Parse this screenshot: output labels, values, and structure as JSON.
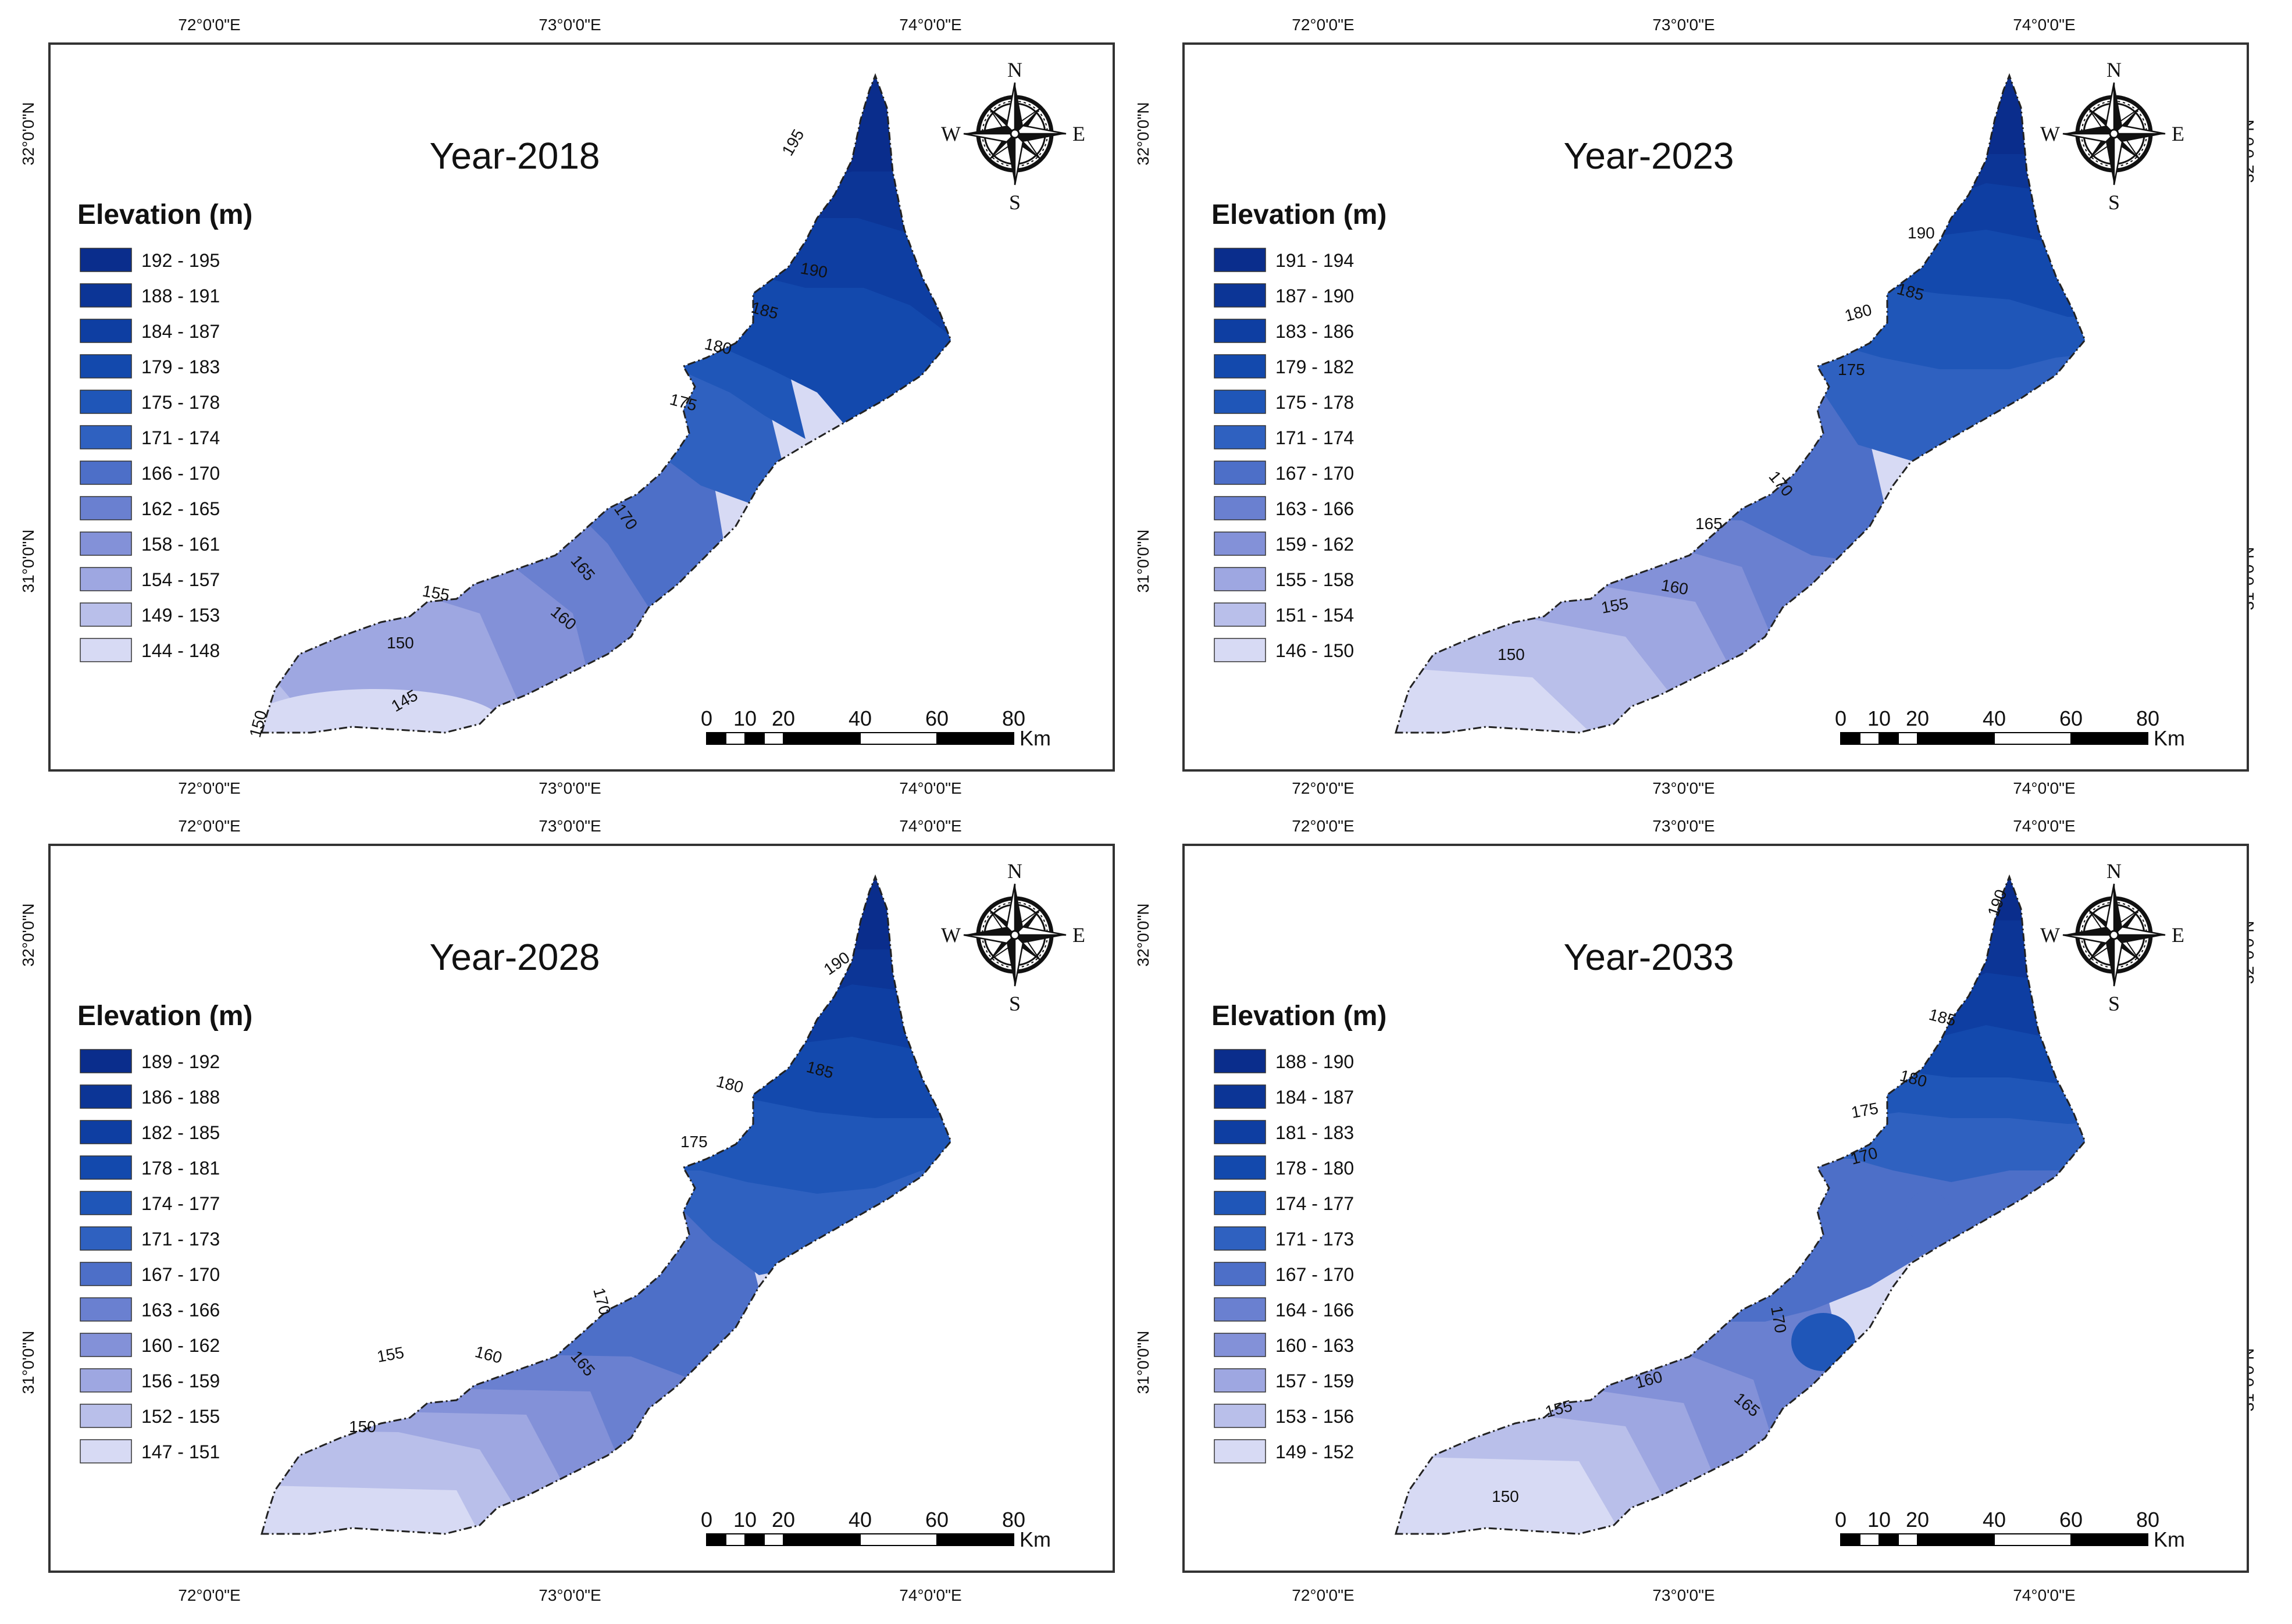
{
  "graticule": {
    "lon_labels": [
      "72°0'0\"E",
      "73°0'0\"E",
      "74°0'0\"E"
    ],
    "lat_labels": [
      "32°0'0\"N",
      "31°0'0\"N"
    ]
  },
  "compass": {
    "n": "N",
    "s": "S",
    "e": "E",
    "w": "W"
  },
  "scale_bar": {
    "ticks": [
      "0",
      "10",
      "20",
      "40",
      "60",
      "80"
    ],
    "unit": "Km"
  },
  "legend_title": "Elevation (m)",
  "panels": [
    {
      "title": "Year-2018",
      "legend": [
        "192 - 195",
        "188 - 191",
        "184 - 187",
        "179 - 183",
        "175 - 178",
        "171 - 174",
        "166 - 170",
        "162 - 165",
        "158 - 161",
        "154 - 157",
        "149 - 153",
        "144 - 148"
      ],
      "contour_labels": [
        "195",
        "190",
        "185",
        "180",
        "175",
        "170",
        "165",
        "160",
        "155",
        "150",
        "145",
        "150"
      ]
    },
    {
      "title": "Year-2023",
      "legend": [
        "191 - 194",
        "187 - 190",
        "183 - 186",
        "179 - 182",
        "175 - 178",
        "171 - 174",
        "167 - 170",
        "163 - 166",
        "159 - 162",
        "155 - 158",
        "151 - 154",
        "146 - 150"
      ],
      "contour_labels": [
        "190",
        "185",
        "180",
        "175",
        "170",
        "165",
        "160",
        "155",
        "150"
      ]
    },
    {
      "title": "Year-2028",
      "legend": [
        "189 - 192",
        "186 - 188",
        "182 - 185",
        "178 - 181",
        "174 - 177",
        "171 - 173",
        "167 - 170",
        "163 - 166",
        "160 - 162",
        "156 - 159",
        "152 - 155",
        "147 - 151"
      ],
      "contour_labels": [
        "190",
        "185",
        "180",
        "175",
        "170",
        "165",
        "160",
        "155",
        "150"
      ]
    },
    {
      "title": "Year-2033",
      "legend": [
        "188 - 190",
        "184 - 187",
        "181 - 183",
        "178 - 180",
        "174 - 177",
        "171 - 173",
        "167 - 170",
        "164 - 166",
        "160 - 163",
        "157 - 159",
        "153 - 156",
        "149 - 152"
      ],
      "contour_labels": [
        "190",
        "185",
        "180",
        "175",
        "170",
        "170",
        "165",
        "160",
        "155",
        "150"
      ]
    }
  ],
  "colors": {
    "ramp": [
      "#0a2d8c",
      "#0c3596",
      "#0e3ea2",
      "#1349ad",
      "#1f56b8",
      "#2f61c0",
      "#4d6fc8",
      "#6a80d0",
      "#8391d8",
      "#9ea7e1",
      "#b9bfea",
      "#d7daf4"
    ],
    "frame": "#333333",
    "text": "#111111"
  }
}
